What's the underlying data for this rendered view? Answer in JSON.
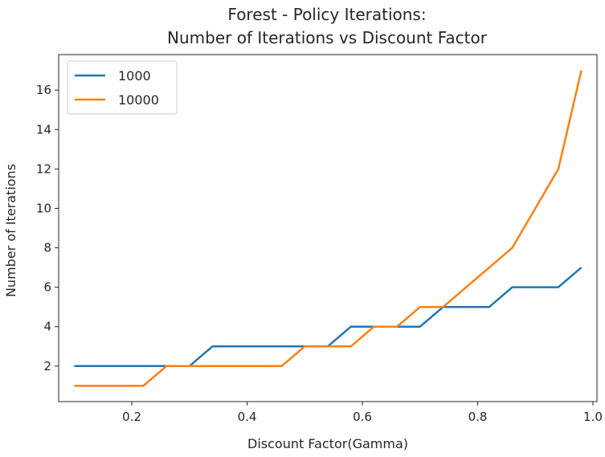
{
  "chart_data": {
    "type": "line",
    "title_lines": [
      "Forest - Policy Iterations:",
      "Number of Iterations vs Discount Factor"
    ],
    "xlabel": "Discount Factor(Gamma)",
    "ylabel": "Number of Iterations",
    "xlim": [
      0.073,
      1.007
    ],
    "ylim": [
      0.2,
      17.8
    ],
    "xticks": [
      0.2,
      0.4,
      0.6,
      0.8,
      1.0
    ],
    "xtick_labels": [
      "0.2",
      "0.4",
      "0.6",
      "0.8",
      "1.0"
    ],
    "yticks": [
      2,
      4,
      6,
      8,
      10,
      12,
      14,
      16
    ],
    "ytick_labels": [
      "2",
      "4",
      "6",
      "8",
      "10",
      "12",
      "14",
      "16"
    ],
    "grid": false,
    "legend_position": "top-left",
    "x": [
      0.1,
      0.14,
      0.18,
      0.22,
      0.26,
      0.3,
      0.34,
      0.38,
      0.42,
      0.46,
      0.5,
      0.54,
      0.58,
      0.62,
      0.66,
      0.7,
      0.74,
      0.78,
      0.82,
      0.86,
      0.9,
      0.94,
      0.98
    ],
    "series": [
      {
        "name": "1000",
        "color": "#1f77b4",
        "values": [
          2,
          2,
          2,
          2,
          2,
          2,
          3,
          3,
          3,
          3,
          3,
          3,
          4,
          4,
          4,
          4,
          5,
          5,
          5,
          6,
          6,
          6,
          7
        ]
      },
      {
        "name": "10000",
        "color": "#ff7f0e",
        "values": [
          1,
          1,
          1,
          1,
          2,
          2,
          2,
          2,
          2,
          2,
          3,
          3,
          3,
          4,
          4,
          5,
          5,
          6,
          7,
          8,
          10,
          12,
          17
        ]
      }
    ]
  }
}
